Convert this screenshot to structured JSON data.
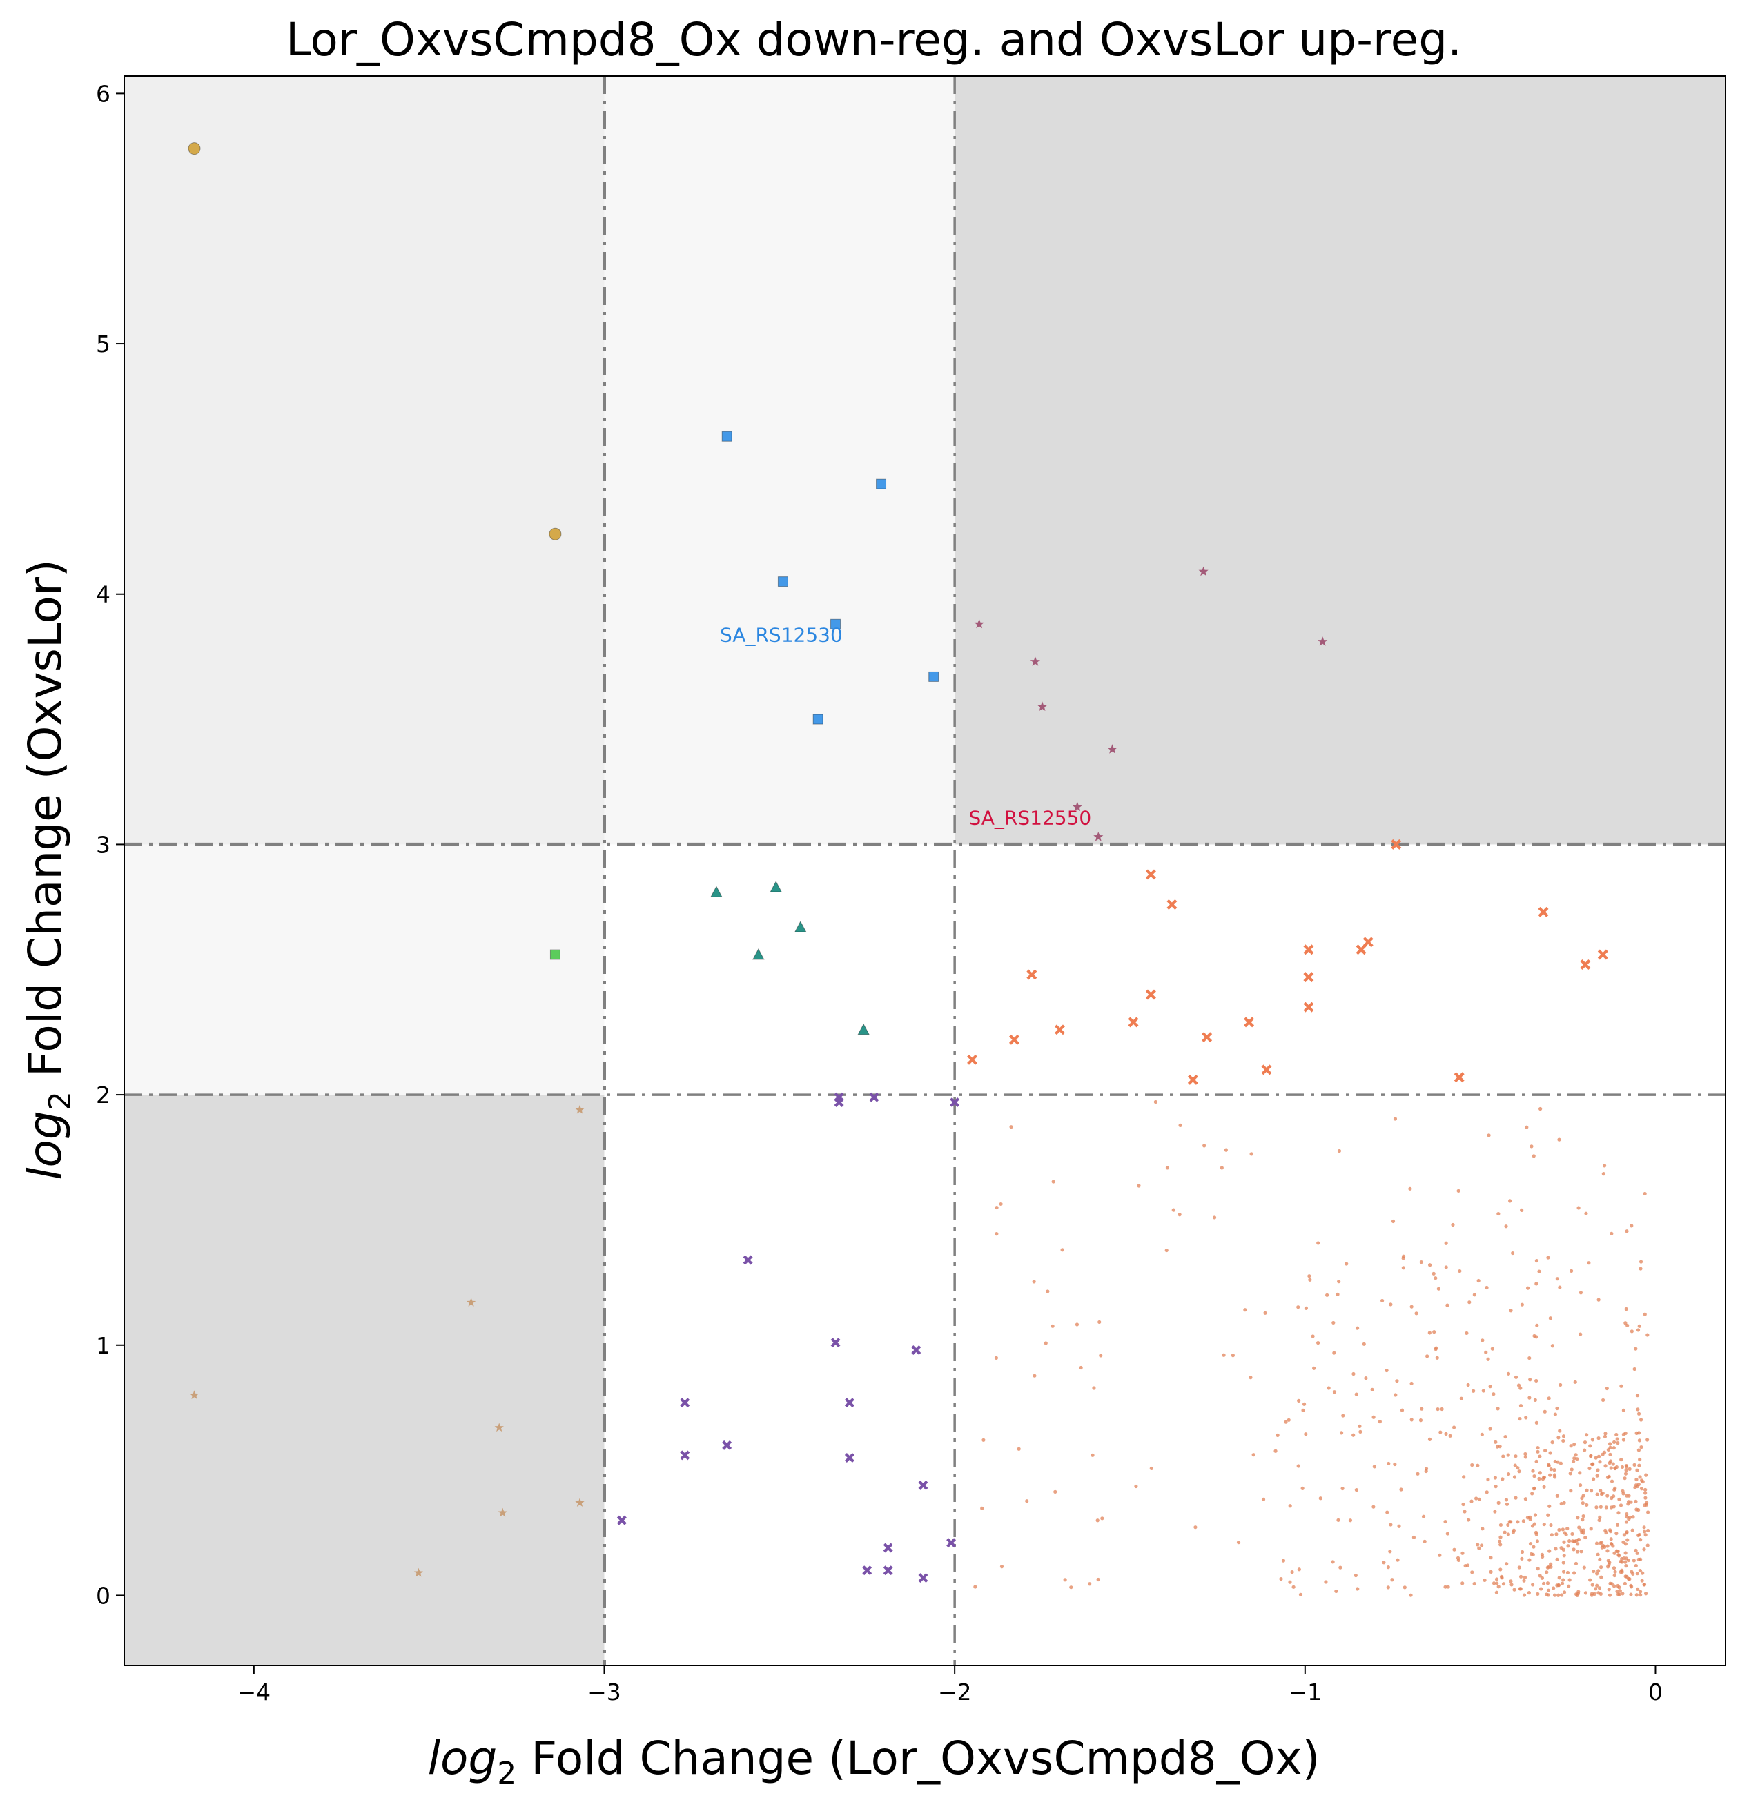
{
  "chart_data": {
    "type": "scatter",
    "title": "Lor_OxvsCmpd8_Ox down-reg. and OxvsLor up-reg.",
    "xlabel": {
      "italic": "log",
      "sub": "2",
      "rest": " Fold Change (Lor_OxvsCmpd8_Ox)"
    },
    "ylabel": {
      "italic": "log",
      "sub": "2",
      "rest": " Fold Change (OxvsLor)"
    },
    "xlim": [
      -4.37,
      0.2
    ],
    "ylim": [
      -0.28,
      6.07
    ],
    "xticks": [
      -4,
      -3,
      -2,
      -1,
      0
    ],
    "xtick_labels": [
      "−4",
      "−3",
      "−2",
      "−1",
      "0"
    ],
    "yticks": [
      0,
      1,
      2,
      3,
      4,
      5,
      6
    ],
    "ytick_labels": [
      "0",
      "1",
      "2",
      "3",
      "4",
      "5",
      "6"
    ],
    "grid": false,
    "regions": [
      {
        "x": [
          -4.37,
          -3
        ],
        "y": [
          3,
          6.07
        ],
        "color": "#efefef"
      },
      {
        "x": [
          -3,
          -2
        ],
        "y": [
          3,
          6.07
        ],
        "color": "#f7f7f7"
      },
      {
        "x": [
          -2,
          0.2
        ],
        "y": [
          3,
          6.07
        ],
        "color": "#dcdcdc"
      },
      {
        "x": [
          -4.37,
          -3
        ],
        "y": [
          2,
          3
        ],
        "color": "#f7f7f7"
      },
      {
        "x": [
          -4.37,
          -3
        ],
        "y": [
          -0.28,
          2
        ],
        "color": "#dcdcdc"
      }
    ],
    "threshold_lines": {
      "x": [
        -3,
        -2
      ],
      "y": [
        2,
        3
      ],
      "color": "#808080"
    },
    "series": [
      {
        "marker": "circle",
        "color": "#d4a94a",
        "size": 15,
        "x": [
          -4.17,
          -3.14
        ],
        "y": [
          5.78,
          4.24
        ]
      },
      {
        "marker": "square",
        "color": "#4499e8",
        "size": 14,
        "x": [
          -2.65,
          -2.21,
          -2.49,
          -2.34,
          -2.06,
          -2.39
        ],
        "y": [
          4.63,
          4.44,
          4.05,
          3.88,
          3.67,
          3.5
        ]
      },
      {
        "marker": "square",
        "color": "#5ccc5c",
        "size": 14,
        "x": [
          -3.14
        ],
        "y": [
          2.56
        ]
      },
      {
        "marker": "star",
        "color": "#a35a78",
        "size": 12,
        "x": [
          -1.29,
          -0.95,
          -1.93,
          -1.77,
          -1.75,
          -1.55,
          -1.65,
          -1.59
        ],
        "y": [
          4.09,
          3.81,
          3.88,
          3.73,
          3.55,
          3.38,
          3.15,
          3.03
        ]
      },
      {
        "marker": "triangle",
        "color": "#2a9488",
        "size": 14,
        "x": [
          -2.68,
          -2.51,
          -2.44,
          -2.56,
          -2.26
        ],
        "y": [
          2.81,
          2.83,
          2.67,
          2.56,
          2.26
        ]
      },
      {
        "marker": "x",
        "color": "#ef7d52",
        "size": 12,
        "x": [
          -0.74,
          -1.44,
          -1.38,
          -0.32,
          -0.99,
          -0.82,
          -0.84,
          -0.15,
          -0.2,
          -1.78,
          -0.99,
          -1.44,
          -0.99,
          -1.49,
          -1.16,
          -1.7,
          -1.28,
          -1.83,
          -1.95,
          -1.11,
          -1.32,
          -0.56
        ],
        "y": [
          3.0,
          2.88,
          2.76,
          2.73,
          2.58,
          2.61,
          2.58,
          2.56,
          2.52,
          2.48,
          2.47,
          2.4,
          2.35,
          2.29,
          2.29,
          2.26,
          2.23,
          2.22,
          2.14,
          2.1,
          2.06,
          2.07
        ]
      },
      {
        "marker": "x",
        "color": "#7a52a8",
        "size": 11,
        "x": [
          -2.33,
          -2.33,
          -2.23,
          -2.0,
          -2.59,
          -2.34,
          -2.11,
          -2.77,
          -2.3,
          -2.65,
          -2.77,
          -2.3,
          -2.09,
          -2.95,
          -2.19,
          -2.01,
          -2.25,
          -2.19,
          -2.09
        ],
        "y": [
          1.97,
          1.99,
          1.99,
          1.97,
          1.34,
          1.01,
          0.98,
          0.77,
          0.77,
          0.6,
          0.56,
          0.55,
          0.44,
          0.3,
          0.19,
          0.21,
          0.1,
          0.1,
          0.07
        ]
      },
      {
        "marker": "star",
        "color": "#c9a07a",
        "size": 11,
        "x": [
          -3.07,
          -3.38,
          -4.17,
          -3.3,
          -3.07,
          -3.29,
          -3.53
        ],
        "y": [
          1.94,
          1.17,
          0.8,
          0.67,
          0.37,
          0.33,
          0.09
        ]
      }
    ],
    "background_cloud": {
      "color": "#e2835a",
      "radius": 2.6,
      "clusters": [
        {
          "count": 360,
          "x_range": [
            -0.62,
            -0.02
          ],
          "y_range": [
            0.0,
            0.65
          ],
          "bias_x": 2.0,
          "bias_y": 1.3
        },
        {
          "count": 240,
          "x_range": [
            -1.1,
            -0.02
          ],
          "y_range": [
            0.0,
            1.4
          ],
          "bias_x": 1.5,
          "bias_y": 1.2
        },
        {
          "count": 140,
          "x_range": [
            -1.95,
            -0.02
          ],
          "y_range": [
            0.0,
            1.98
          ],
          "bias_x": 1.0,
          "bias_y": 1.0
        }
      ]
    },
    "annotations": [
      {
        "text": "SA_RS12530",
        "x": -2.67,
        "y": 3.81,
        "color": "#2b86e0"
      },
      {
        "text": "SA_RS12550",
        "x": -1.96,
        "y": 3.08,
        "color": "#d1113f"
      }
    ]
  }
}
